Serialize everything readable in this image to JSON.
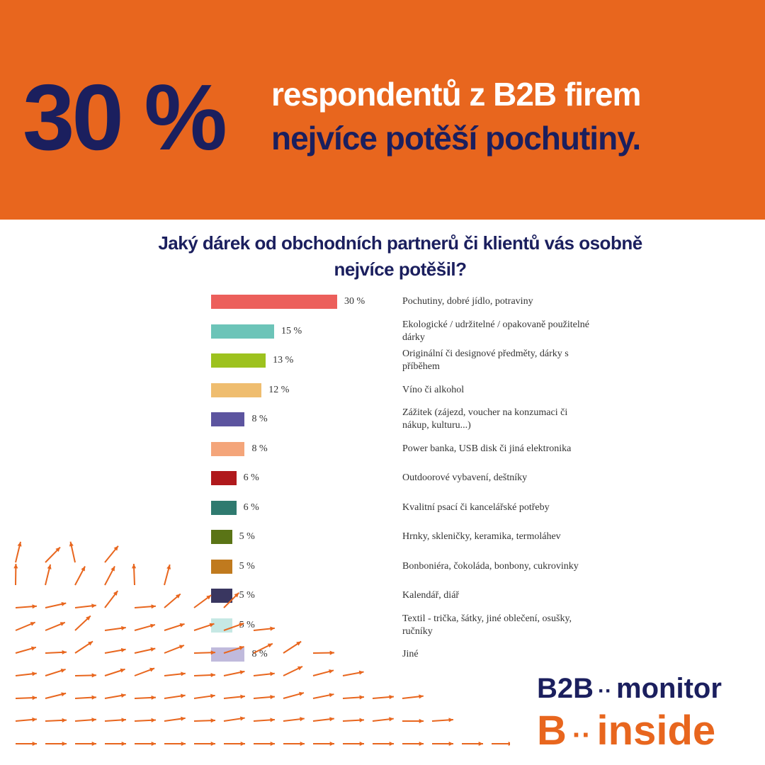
{
  "header": {
    "big_number": "30 %",
    "line1": "respondentů z B2B firem",
    "line2": "nejvíce potěší pochutiny."
  },
  "chart_data": {
    "type": "bar",
    "orientation": "horizontal",
    "title": "Jaký dárek od obchodních partnerů či klientů vás osobně nejvíce potěšil?",
    "categories": [
      "Pochutiny, dobré jídlo, potraviny",
      "Ekologické / udržitelné / opakovaně použitelné dárky",
      "Originální či designové předměty, dárky s příběhem",
      "Víno či alkohol",
      "Zážitek (zájezd, voucher na konzumaci či nákup, kulturu...)",
      "Power banka, USB disk či jiná elektronika",
      "Outdoorové vybavení, deštníky",
      "Kvalitní psací či kancelářské potřeby",
      "Hrnky, skleničky, keramika, termoláhev",
      "Bonboniéra, čokoláda, bonbony, cukrovinky",
      "Kalendář, diář",
      "Textil - trička, šátky, jiné oblečení, osušky, ručníky",
      "Jiné"
    ],
    "values": [
      30,
      15,
      13,
      12,
      8,
      8,
      6,
      6,
      5,
      5,
      5,
      5,
      8
    ],
    "value_labels": [
      "30 %",
      "15 %",
      "13 %",
      "12 %",
      "8 %",
      "8 %",
      "6 %",
      "6 %",
      "5 %",
      "5 %",
      "5 %",
      "5 %",
      "8 %"
    ],
    "colors": [
      "#ec5f5b",
      "#6cc4b8",
      "#9dc21e",
      "#efbd6f",
      "#5c549f",
      "#f4a57a",
      "#b0191c",
      "#2f7a6f",
      "#5a7416",
      "#c07a1e",
      "#393660",
      "#c6e8e4",
      "#c0badc"
    ]
  },
  "logo": {
    "line1_a": "B2B",
    "line1_b": "monitor",
    "line2_a": "B",
    "line2_b": "inside"
  }
}
